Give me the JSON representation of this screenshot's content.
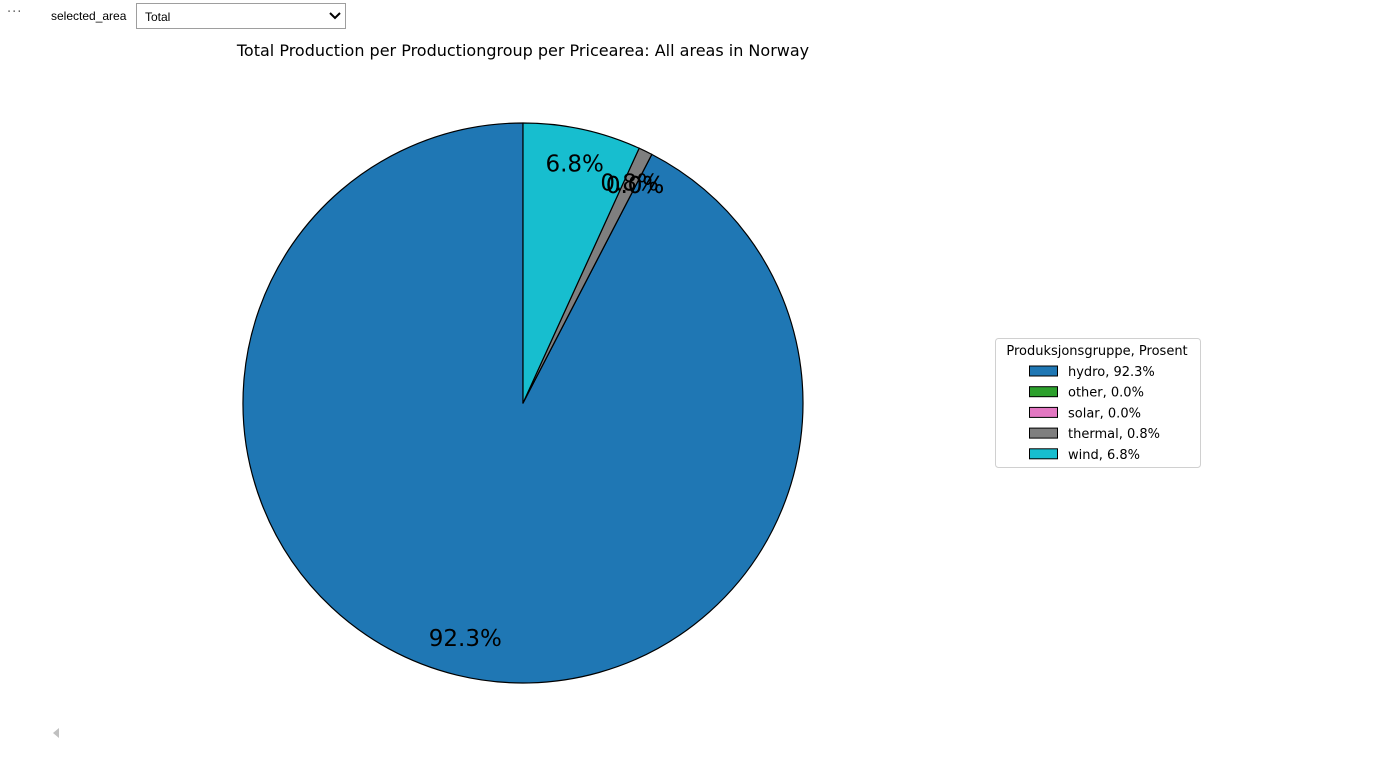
{
  "toolbar": {
    "more_icon": "ellipsis-icon",
    "widget_label": "selected_area",
    "dropdown": {
      "selected": "Total",
      "icon": "chevron-down-icon"
    }
  },
  "chart_data": {
    "type": "pie",
    "title": "Total Production per Productiongroup per Pricearea: All areas in Norway",
    "start_angle_deg": 90,
    "direction": "counterclockwise",
    "slices": [
      {
        "label": "hydro",
        "value": 92.3,
        "pct_label": "92.3%",
        "color": "#1f77b4"
      },
      {
        "label": "other",
        "value": 0.0,
        "pct_label": "0.0%",
        "color": "#2ca02c"
      },
      {
        "label": "solar",
        "value": 0.0,
        "pct_label": "0.0%",
        "color": "#e377c2"
      },
      {
        "label": "thermal",
        "value": 0.8,
        "pct_label": "0.8%",
        "color": "#7f7f7f"
      },
      {
        "label": "wind",
        "value": 6.8,
        "pct_label": "6.8%",
        "color": "#17becf"
      }
    ],
    "legend": {
      "title": "Produksjonsgruppe, Prosent",
      "placement": "right",
      "entries": [
        "hydro, 92.3%",
        "other, 0.0%",
        "solar, 0.0%",
        "thermal, 0.8%",
        "wind, 6.8%"
      ]
    }
  }
}
